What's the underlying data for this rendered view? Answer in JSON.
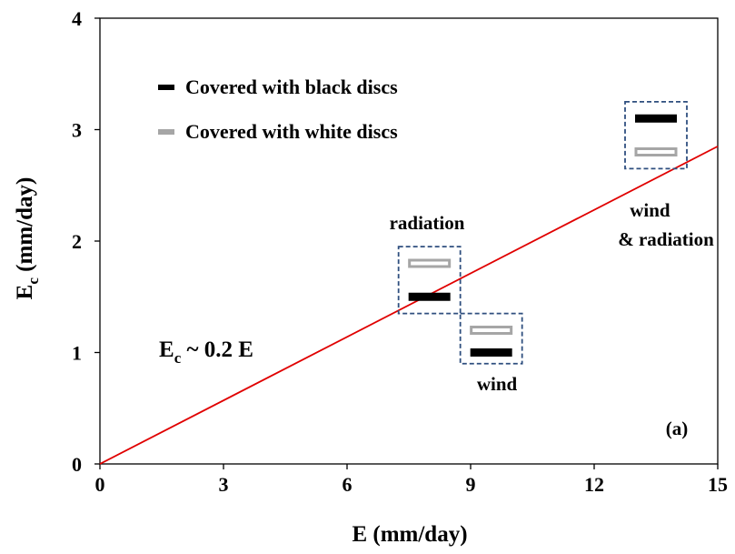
{
  "chart_data": {
    "type": "scatter",
    "xlabel": "E (mm/day)",
    "ylabel": {
      "main": "E",
      "sub": "c",
      "rest": " (mm/day)"
    },
    "xlim": [
      0,
      15
    ],
    "ylim": [
      0,
      4
    ],
    "xticks": [
      0,
      3,
      6,
      9,
      12,
      15
    ],
    "yticks": [
      0,
      1,
      2,
      3,
      4
    ],
    "grid": false,
    "legend_position": "top-left",
    "series": [
      {
        "name": "Covered with black discs",
        "color": "#000000",
        "marker": "filled-bar",
        "points": [
          {
            "x": 8.0,
            "y": 1.5
          },
          {
            "x": 9.5,
            "y": 1.0
          },
          {
            "x": 13.5,
            "y": 3.1
          }
        ]
      },
      {
        "name": "Covered with white discs",
        "color": "#a6a6a6",
        "marker": "hollow-bar",
        "points": [
          {
            "x": 8.0,
            "y": 1.8
          },
          {
            "x": 9.5,
            "y": 1.2
          },
          {
            "x": 13.5,
            "y": 2.8
          }
        ]
      }
    ],
    "fit_line": {
      "slope": 0.19,
      "intercept": 0,
      "color": "#e00000"
    },
    "equation": {
      "main": "E",
      "sub": "c",
      "rest": " ~ 0.2 E"
    },
    "groups": [
      {
        "label": "radiation",
        "box": {
          "x": [
            7.25,
            8.75
          ],
          "y": [
            1.35,
            1.95
          ]
        }
      },
      {
        "label": "wind",
        "box": {
          "x": [
            8.75,
            10.25
          ],
          "y": [
            0.9,
            1.35
          ]
        }
      },
      {
        "label": "wind\n& radiation",
        "box": {
          "x": [
            12.75,
            14.25
          ],
          "y": [
            2.65,
            3.25
          ]
        }
      }
    ],
    "panel_label": "(a)"
  }
}
